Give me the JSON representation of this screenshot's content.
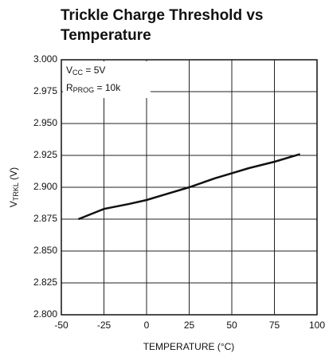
{
  "chart_data": {
    "type": "line",
    "title": [
      "Trickle Charge Threshold vs",
      "Temperature"
    ],
    "x_label": "TEMPERATURE (°C)",
    "y_label": [
      "V",
      "TRKL",
      " (V)"
    ],
    "annotations": [
      [
        "V",
        "CC",
        " = 5V"
      ],
      [
        "R",
        "PROG",
        " = 10k"
      ]
    ],
    "x": [
      -40,
      -25,
      -10,
      0,
      10,
      25,
      40,
      50,
      60,
      75,
      90
    ],
    "series": [
      {
        "color": "#111111",
        "values": [
          2.875,
          2.883,
          2.887,
          2.89,
          2.894,
          2.9,
          2.907,
          2.911,
          2.915,
          2.92,
          2.926
        ]
      }
    ],
    "xlim": [
      -50,
      100
    ],
    "xticks": [
      -50,
      -25,
      0,
      25,
      50,
      75,
      100
    ],
    "ylim": [
      2.8,
      3.0
    ],
    "yticks": [
      {
        "value": 2.8,
        "label": "2.800"
      },
      2.825,
      {
        "value": 2.85,
        "label": "2.850"
      },
      2.875,
      {
        "value": 2.9,
        "label": "2.900"
      },
      2.925,
      {
        "value": 2.95,
        "label": "2.950"
      },
      2.975,
      {
        "value": 3.0,
        "label": "3.000"
      }
    ],
    "grid": true
  }
}
